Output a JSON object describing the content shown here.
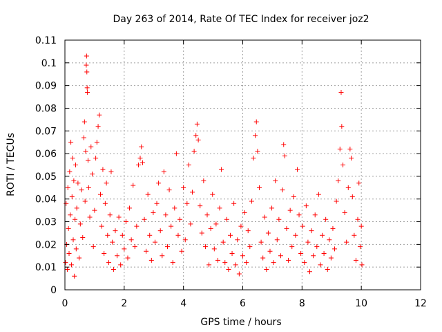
{
  "chart_data": {
    "type": "scatter",
    "title": "Day 263 of 2014, Rate Of TEC Index for receiver joz2",
    "xlabel": "GPS time / hours",
    "ylabel": "ROTI / TECUs",
    "xlim": [
      0,
      12
    ],
    "ylim": [
      0,
      0.11
    ],
    "grid": true,
    "marker": "+",
    "color": "#ff0000",
    "x_ticks": [
      {
        "value": 0,
        "label": "0"
      },
      {
        "value": 2,
        "label": "2"
      },
      {
        "value": 4,
        "label": "4"
      },
      {
        "value": 6,
        "label": "6"
      },
      {
        "value": 8,
        "label": "8"
      },
      {
        "value": 10,
        "label": "10"
      },
      {
        "value": 12,
        "label": "12"
      }
    ],
    "y_ticks": [
      {
        "value": 0,
        "label": "0"
      },
      {
        "value": 0.01,
        "label": "0.01"
      },
      {
        "value": 0.02,
        "label": "0.02"
      },
      {
        "value": 0.03,
        "label": "0.03"
      },
      {
        "value": 0.04,
        "label": "0.04"
      },
      {
        "value": 0.05,
        "label": "0.05"
      },
      {
        "value": 0.06,
        "label": "0.06"
      },
      {
        "value": 0.07,
        "label": "0.07"
      },
      {
        "value": 0.08,
        "label": "0.08"
      },
      {
        "value": 0.09,
        "label": "0.09"
      },
      {
        "value": 0.1,
        "label": "0.1"
      },
      {
        "value": 0.11,
        "label": "0.11"
      }
    ],
    "series": [
      {
        "name": "ROTI",
        "points": [
          [
            0.02,
            0.012
          ],
          [
            0.04,
            0.038
          ],
          [
            0.06,
            0.02
          ],
          [
            0.08,
            0.009
          ],
          [
            0.1,
            0.045
          ],
          [
            0.12,
            0.027
          ],
          [
            0.14,
            0.016
          ],
          [
            0.16,
            0.052
          ],
          [
            0.18,
            0.033
          ],
          [
            0.2,
            0.065
          ],
          [
            0.22,
            0.011
          ],
          [
            0.24,
            0.041
          ],
          [
            0.26,
            0.058
          ],
          [
            0.28,
            0.022
          ],
          [
            0.3,
            0.048
          ],
          [
            0.32,
            0.006
          ],
          [
            0.34,
            0.031
          ],
          [
            0.36,
            0.055
          ],
          [
            0.38,
            0.018
          ],
          [
            0.4,
            0.036
          ],
          [
            0.44,
            0.047
          ],
          [
            0.48,
            0.014
          ],
          [
            0.52,
            0.029
          ],
          [
            0.56,
            0.044
          ],
          [
            0.6,
            0.023
          ],
          [
            0.64,
            0.067
          ],
          [
            0.66,
            0.074
          ],
          [
            0.68,
            0.039
          ],
          [
            0.7,
            0.061
          ],
          [
            0.72,
            0.099
          ],
          [
            0.73,
            0.103
          ],
          [
            0.74,
            0.096
          ],
          [
            0.75,
            0.089
          ],
          [
            0.76,
            0.087
          ],
          [
            0.78,
            0.057
          ],
          [
            0.8,
            0.045
          ],
          [
            0.84,
            0.032
          ],
          [
            0.88,
            0.063
          ],
          [
            0.92,
            0.051
          ],
          [
            0.96,
            0.019
          ],
          [
            1.0,
            0.035
          ],
          [
            1.04,
            0.058
          ],
          [
            1.08,
            0.065
          ],
          [
            1.12,
            0.072
          ],
          [
            1.16,
            0.077
          ],
          [
            1.2,
            0.042
          ],
          [
            1.24,
            0.028
          ],
          [
            1.28,
            0.053
          ],
          [
            1.32,
            0.016
          ],
          [
            1.36,
            0.038
          ],
          [
            1.4,
            0.047
          ],
          [
            1.44,
            0.024
          ],
          [
            1.48,
            0.012
          ],
          [
            1.52,
            0.033
          ],
          [
            1.56,
            0.052
          ],
          [
            1.6,
            0.021
          ],
          [
            1.64,
            0.009
          ],
          [
            1.7,
            0.026
          ],
          [
            1.76,
            0.015
          ],
          [
            1.82,
            0.032
          ],
          [
            1.88,
            0.011
          ],
          [
            1.94,
            0.024
          ],
          [
            2.0,
            0.018
          ],
          [
            2.06,
            0.03
          ],
          [
            2.12,
            0.014
          ],
          [
            2.18,
            0.036
          ],
          [
            2.24,
            0.022
          ],
          [
            2.3,
            0.046
          ],
          [
            2.36,
            0.019
          ],
          [
            2.42,
            0.028
          ],
          [
            2.48,
            0.055
          ],
          [
            2.54,
            0.058
          ],
          [
            2.58,
            0.063
          ],
          [
            2.62,
            0.056
          ],
          [
            2.68,
            0.031
          ],
          [
            2.74,
            0.017
          ],
          [
            2.8,
            0.042
          ],
          [
            2.86,
            0.024
          ],
          [
            2.92,
            0.013
          ],
          [
            2.98,
            0.034
          ],
          [
            3.04,
            0.021
          ],
          [
            3.1,
            0.038
          ],
          [
            3.16,
            0.047
          ],
          [
            3.22,
            0.026
          ],
          [
            3.28,
            0.015
          ],
          [
            3.34,
            0.052
          ],
          [
            3.4,
            0.033
          ],
          [
            3.46,
            0.019
          ],
          [
            3.52,
            0.044
          ],
          [
            3.58,
            0.028
          ],
          [
            3.64,
            0.012
          ],
          [
            3.7,
            0.036
          ],
          [
            3.76,
            0.06
          ],
          [
            3.82,
            0.024
          ],
          [
            3.88,
            0.031
          ],
          [
            3.94,
            0.017
          ],
          [
            4.0,
            0.045
          ],
          [
            4.06,
            0.022
          ],
          [
            4.12,
            0.038
          ],
          [
            4.18,
            0.055
          ],
          [
            4.24,
            0.029
          ],
          [
            4.3,
            0.043
          ],
          [
            4.36,
            0.061
          ],
          [
            4.42,
            0.068
          ],
          [
            4.46,
            0.073
          ],
          [
            4.5,
            0.066
          ],
          [
            4.56,
            0.037
          ],
          [
            4.62,
            0.025
          ],
          [
            4.68,
            0.048
          ],
          [
            4.74,
            0.019
          ],
          [
            4.8,
            0.033
          ],
          [
            4.86,
            0.011
          ],
          [
            4.92,
            0.027
          ],
          [
            4.98,
            0.042
          ],
          [
            5.04,
            0.018
          ],
          [
            5.1,
            0.029
          ],
          [
            5.16,
            0.013
          ],
          [
            5.22,
            0.036
          ],
          [
            5.28,
            0.053
          ],
          [
            5.34,
            0.021
          ],
          [
            5.4,
            0.012
          ],
          [
            5.46,
            0.031
          ],
          [
            5.52,
            0.009
          ],
          [
            5.58,
            0.024
          ],
          [
            5.64,
            0.016
          ],
          [
            5.7,
            0.038
          ],
          [
            5.76,
            0.011
          ],
          [
            5.82,
            0.022
          ],
          [
            5.88,
            0.007
          ],
          [
            5.94,
            0.028
          ],
          [
            6.0,
            0.015
          ],
          [
            6.06,
            0.034
          ],
          [
            6.12,
            0.012
          ],
          [
            6.18,
            0.026
          ],
          [
            6.24,
            0.019
          ],
          [
            6.3,
            0.039
          ],
          [
            6.36,
            0.058
          ],
          [
            6.42,
            0.068
          ],
          [
            6.46,
            0.074
          ],
          [
            6.5,
            0.061
          ],
          [
            6.56,
            0.045
          ],
          [
            6.62,
            0.021
          ],
          [
            6.68,
            0.014
          ],
          [
            6.74,
            0.032
          ],
          [
            6.8,
            0.009
          ],
          [
            6.86,
            0.025
          ],
          [
            6.92,
            0.017
          ],
          [
            6.98,
            0.036
          ],
          [
            7.04,
            0.012
          ],
          [
            7.1,
            0.048
          ],
          [
            7.16,
            0.022
          ],
          [
            7.22,
            0.031
          ],
          [
            7.28,
            0.015
          ],
          [
            7.34,
            0.044
          ],
          [
            7.38,
            0.064
          ],
          [
            7.42,
            0.059
          ],
          [
            7.48,
            0.027
          ],
          [
            7.54,
            0.013
          ],
          [
            7.6,
            0.035
          ],
          [
            7.66,
            0.019
          ],
          [
            7.72,
            0.041
          ],
          [
            7.78,
            0.024
          ],
          [
            7.84,
            0.053
          ],
          [
            7.9,
            0.033
          ],
          [
            7.96,
            0.016
          ],
          [
            8.02,
            0.028
          ],
          [
            8.08,
            0.012
          ],
          [
            8.14,
            0.037
          ],
          [
            8.2,
            0.021
          ],
          [
            8.26,
            0.008
          ],
          [
            8.32,
            0.026
          ],
          [
            8.38,
            0.015
          ],
          [
            8.44,
            0.033
          ],
          [
            8.5,
            0.019
          ],
          [
            8.56,
            0.042
          ],
          [
            8.62,
            0.011
          ],
          [
            8.68,
            0.024
          ],
          [
            8.74,
            0.016
          ],
          [
            8.8,
            0.031
          ],
          [
            8.86,
            0.009
          ],
          [
            8.92,
            0.022
          ],
          [
            8.98,
            0.014
          ],
          [
            9.04,
            0.027
          ],
          [
            9.1,
            0.018
          ],
          [
            9.16,
            0.039
          ],
          [
            9.22,
            0.048
          ],
          [
            9.28,
            0.062
          ],
          [
            9.32,
            0.087
          ],
          [
            9.34,
            0.072
          ],
          [
            9.38,
            0.055
          ],
          [
            9.44,
            0.034
          ],
          [
            9.5,
            0.021
          ],
          [
            9.56,
            0.045
          ],
          [
            9.62,
            0.062
          ],
          [
            9.66,
            0.058
          ],
          [
            9.7,
            0.041
          ],
          [
            9.76,
            0.024
          ],
          [
            9.82,
            0.013
          ],
          [
            9.88,
            0.031
          ],
          [
            9.92,
            0.047
          ],
          [
            9.96,
            0.019
          ],
          [
            10.0,
            0.028
          ],
          [
            10.02,
            0.011
          ]
        ]
      }
    ]
  }
}
